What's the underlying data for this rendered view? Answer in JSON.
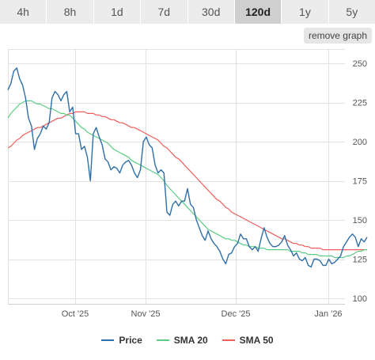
{
  "tabs": [
    "4h",
    "8h",
    "1d",
    "7d",
    "30d",
    "120d",
    "1y",
    "5y"
  ],
  "active_tab": "120d",
  "remove_button": "remove graph",
  "chart_data": {
    "type": "line",
    "x_tick_labels": [
      "Oct '25",
      "Nov '25",
      "Dec '25",
      "Jan '26"
    ],
    "y_ticks": [
      100,
      125,
      150,
      175,
      200,
      225,
      250
    ],
    "ylim": [
      100,
      250
    ],
    "grid": true,
    "legend_position": "bottom",
    "series": [
      {
        "name": "Price",
        "color": "#2f6fa8",
        "values": [
          233,
          237,
          245,
          247,
          240,
          236,
          228,
          215,
          210,
          195,
          202,
          205,
          210,
          208,
          212,
          228,
          232,
          230,
          226,
          230,
          232,
          219,
          222,
          205,
          205,
          195,
          197,
          190,
          175,
          205,
          209,
          203,
          198,
          189,
          187,
          182,
          184,
          183,
          180,
          185,
          187,
          188,
          185,
          180,
          177,
          182,
          200,
          203,
          198,
          196,
          185,
          180,
          182,
          180,
          155,
          153,
          160,
          162,
          159,
          162,
          162,
          170,
          160,
          158,
          150,
          145,
          140,
          137,
          143,
          138,
          135,
          133,
          130,
          125,
          122,
          128,
          129,
          133,
          135,
          141,
          138,
          138,
          133,
          131,
          133,
          130,
          138,
          145,
          139,
          135,
          133,
          133,
          134,
          136,
          140,
          134,
          131,
          127,
          129,
          125,
          124,
          126,
          121,
          120,
          125,
          125,
          124,
          121,
          121,
          125,
          122,
          123,
          125,
          127,
          133,
          136,
          139,
          141,
          139,
          133,
          138,
          136,
          139
        ]
      },
      {
        "name": "SMA 20",
        "color": "#5ccc84",
        "values": [
          215,
          218,
          220,
          222,
          224,
          225,
          226,
          226,
          226,
          225,
          224,
          224,
          223,
          222,
          221,
          221,
          220,
          219,
          218,
          218,
          217,
          217,
          215,
          213,
          211,
          209,
          208,
          206,
          205,
          204,
          203,
          202,
          201,
          200,
          199,
          197,
          195,
          194,
          193,
          192,
          191,
          190,
          188,
          187,
          186,
          185,
          184,
          183,
          182,
          181,
          180,
          179,
          177,
          175,
          172,
          170,
          168,
          166,
          164,
          162,
          160,
          158,
          156,
          154,
          152,
          150,
          148,
          146,
          144,
          143,
          142,
          141,
          140,
          139,
          138,
          138,
          137,
          137,
          136,
          135,
          134,
          134,
          133,
          133,
          133,
          132,
          132,
          132,
          131,
          131,
          131,
          131,
          131,
          131,
          131,
          131,
          130,
          130,
          130,
          130,
          129,
          129,
          128,
          128,
          128,
          128,
          127,
          127,
          127,
          127,
          127,
          126,
          126,
          126,
          126,
          127,
          127,
          128,
          129,
          130,
          130,
          131,
          131
        ]
      },
      {
        "name": "SMA 50",
        "color": "#ef5e5a",
        "values": [
          196,
          197,
          199,
          201,
          202,
          204,
          205,
          206,
          207,
          208,
          209,
          209,
          210,
          211,
          212,
          213,
          214,
          215,
          215,
          216,
          217,
          218,
          218,
          219,
          219,
          219,
          219,
          218,
          218,
          218,
          217,
          217,
          216,
          216,
          215,
          214,
          214,
          213,
          212,
          212,
          211,
          210,
          209,
          209,
          208,
          207,
          206,
          205,
          204,
          203,
          202,
          201,
          199,
          197,
          196,
          194,
          192,
          190,
          189,
          187,
          185,
          183,
          181,
          179,
          177,
          175,
          173,
          171,
          169,
          167,
          165,
          163,
          162,
          160,
          158,
          157,
          155,
          154,
          153,
          152,
          151,
          150,
          149,
          148,
          147,
          146,
          145,
          144,
          143,
          142,
          141,
          140,
          139,
          138,
          138,
          137,
          136,
          135,
          135,
          134,
          134,
          133,
          133,
          132,
          132,
          132,
          132,
          131,
          131,
          131,
          131,
          131,
          131,
          131,
          131,
          131,
          131,
          131,
          131,
          131,
          131,
          131,
          131
        ]
      }
    ]
  }
}
